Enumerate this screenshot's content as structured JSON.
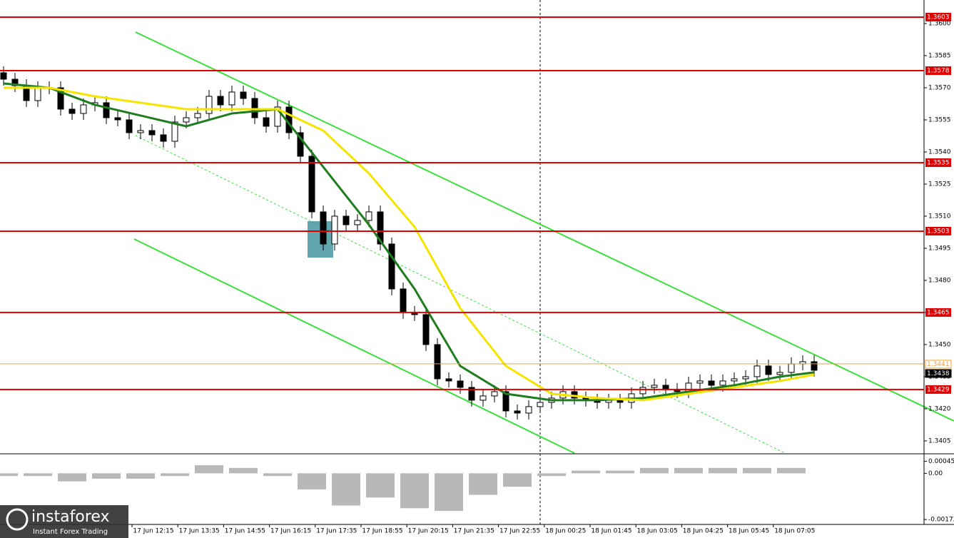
{
  "chart_data": {
    "type": "candlestick",
    "open": [
      1.3577,
      1.3574,
      1.3571,
      1.3564,
      1.357,
      1.357,
      1.356,
      1.3558,
      1.3562,
      1.3563,
      1.3556,
      1.3555,
      1.3549,
      1.355,
      1.3548,
      1.3545,
      1.3554,
      1.3556,
      1.3558,
      1.3566,
      1.3562,
      1.3568,
      1.3565,
      1.3556,
      1.3552,
      1.3561,
      1.3549,
      1.3538,
      1.3512,
      1.3497,
      1.351,
      1.3506,
      1.3508,
      1.3512,
      1.3497,
      1.3476,
      1.3465,
      1.3464,
      1.345,
      1.3434,
      1.3433,
      1.343,
      1.3424,
      1.3426,
      1.3428,
      1.3419,
      1.3418,
      1.3421,
      1.3423,
      1.3425,
      1.3428,
      1.3425,
      1.3424,
      1.3423,
      1.3424,
      1.3423,
      1.3427,
      1.343,
      1.3431,
      1.3429,
      1.3428,
      1.3432,
      1.3433,
      1.3431,
      1.3433,
      1.3434,
      1.3435,
      1.344,
      1.3436,
      1.3437,
      1.3441,
      1.3442
    ],
    "high": [
      1.358,
      1.3577,
      1.3574,
      1.3573,
      1.3573,
      1.3573,
      1.3563,
      1.3565,
      1.3566,
      1.3566,
      1.3559,
      1.3558,
      1.3553,
      1.3553,
      1.3551,
      1.3557,
      1.3559,
      1.3561,
      1.3569,
      1.3569,
      1.3571,
      1.3571,
      1.3568,
      1.3559,
      1.3564,
      1.3564,
      1.3552,
      1.3541,
      1.3515,
      1.3513,
      1.3513,
      1.3511,
      1.3515,
      1.3515,
      1.35,
      1.3479,
      1.3468,
      1.3467,
      1.3453,
      1.3437,
      1.3436,
      1.3433,
      1.3429,
      1.3431,
      1.3431,
      1.3422,
      1.3424,
      1.3426,
      1.3428,
      1.3431,
      1.3431,
      1.3428,
      1.3427,
      1.3427,
      1.3427,
      1.343,
      1.3433,
      1.3434,
      1.3434,
      1.3432,
      1.3435,
      1.3436,
      1.3436,
      1.3436,
      1.3437,
      1.3438,
      1.3443,
      1.3443,
      1.344,
      1.3444,
      1.3445,
      1.3445
    ],
    "low": [
      1.3571,
      1.3568,
      1.3561,
      1.3561,
      1.3567,
      1.3557,
      1.3555,
      1.3555,
      1.3559,
      1.3553,
      1.3552,
      1.3546,
      1.3546,
      1.3545,
      1.3542,
      1.3542,
      1.3551,
      1.3553,
      1.3555,
      1.3559,
      1.3559,
      1.3562,
      1.3553,
      1.3549,
      1.3549,
      1.3546,
      1.3535,
      1.3509,
      1.3494,
      1.3494,
      1.3503,
      1.3503,
      1.3505,
      1.3494,
      1.3473,
      1.3462,
      1.3461,
      1.3447,
      1.3431,
      1.343,
      1.3427,
      1.3421,
      1.3421,
      1.3423,
      1.3416,
      1.3415,
      1.3415,
      1.3418,
      1.342,
      1.3422,
      1.3422,
      1.3421,
      1.342,
      1.342,
      1.342,
      1.342,
      1.3424,
      1.3427,
      1.3426,
      1.3425,
      1.3425,
      1.3429,
      1.3428,
      1.3428,
      1.343,
      1.3431,
      1.3432,
      1.3433,
      1.3433,
      1.3434,
      1.3438,
      1.3435
    ],
    "close": [
      1.3574,
      1.3571,
      1.3564,
      1.357,
      1.357,
      1.356,
      1.3558,
      1.3562,
      1.3563,
      1.3556,
      1.3555,
      1.3549,
      1.355,
      1.3548,
      1.3545,
      1.3554,
      1.3556,
      1.3558,
      1.3566,
      1.3562,
      1.3568,
      1.3565,
      1.3556,
      1.3552,
      1.3561,
      1.3549,
      1.3538,
      1.3512,
      1.3497,
      1.351,
      1.3506,
      1.3508,
      1.3512,
      1.3497,
      1.3476,
      1.3465,
      1.3464,
      1.345,
      1.3434,
      1.3433,
      1.343,
      1.3424,
      1.3426,
      1.3428,
      1.3419,
      1.3418,
      1.3421,
      1.3423,
      1.3425,
      1.3428,
      1.3425,
      1.3424,
      1.3423,
      1.3424,
      1.3423,
      1.3427,
      1.343,
      1.3431,
      1.3429,
      1.3428,
      1.3432,
      1.3433,
      1.3431,
      1.3433,
      1.3434,
      1.3435,
      1.344,
      1.3436,
      1.3437,
      1.3441,
      1.3442,
      1.3438
    ],
    "ylim": [
      1.33993,
      1.3611
    ],
    "yticks": [
      1.3405,
      {
        "value": 1.342,
        "label": "1.3420"
      },
      1.3435,
      {
        "value": 1.345,
        "label": "1.3450"
      },
      1.3465,
      {
        "value": 1.348,
        "label": "1.3480"
      },
      1.3495,
      {
        "value": 1.351,
        "label": "1.3510"
      },
      1.3525,
      {
        "value": 1.354,
        "label": "1.3540"
      },
      1.3555,
      {
        "value": 1.357,
        "label": "1.3570"
      },
      1.3585,
      {
        "value": 1.36,
        "label": "1.3600"
      }
    ],
    "levels": [
      1.3603,
      1.3578,
      1.3535,
      1.3503,
      1.3465,
      1.3429
    ],
    "level_color": "#e00000",
    "price_lines": [
      {
        "value": 1.3441,
        "color": "#f0a030"
      },
      {
        "value": 1.3438,
        "color": "#000000"
      }
    ],
    "ma_lines": [
      {
        "color": "#1e7d1e",
        "x": [
          0,
          4,
          8,
          12,
          16,
          20,
          24,
          28,
          32,
          36,
          40,
          44,
          48,
          52,
          56,
          60,
          64,
          68,
          71
        ],
        "values": [
          1.3572,
          1.357,
          1.3562,
          1.3557,
          1.3552,
          1.3558,
          1.356,
          1.3533,
          1.3506,
          1.3476,
          1.344,
          1.3427,
          1.3424,
          1.3424,
          1.3425,
          1.3428,
          1.3431,
          1.3435,
          1.3437
        ]
      },
      {
        "color": "#f5e400",
        "x": [
          0,
          4,
          8,
          12,
          16,
          20,
          24,
          28,
          32,
          36,
          40,
          44,
          48,
          52,
          56,
          60,
          64,
          68,
          71
        ],
        "values": [
          1.357,
          1.357,
          1.3566,
          1.3563,
          1.356,
          1.356,
          1.356,
          1.355,
          1.353,
          1.3505,
          1.3467,
          1.344,
          1.3427,
          1.3425,
          1.3424,
          1.3427,
          1.343,
          1.3433,
          1.3436
        ]
      }
    ],
    "xlabels": [
      "17 Jun 12:15",
      "17 Jun 13:35",
      "17 Jun 14:55",
      "17 Jun 16:15",
      "17 Jun 17:35",
      "17 Jun 18:55",
      "17 Jun 20:15",
      "17 Jun 21:35",
      "17 Jun 22:55",
      "18 Jun 00:25",
      "18 Jun 01:45",
      "18 Jun 03:05",
      "18 Jun 04:25",
      "18 Jun 05:45",
      "18 Jun 07:05"
    ],
    "macd": {
      "color": "#b8b8b8",
      "ylim": [
        -0.00185,
        0.0007
      ],
      "yticks": [
        0.00045,
        {
          "value": 0,
          "label": "0.00"
        },
        -0.00172
      ],
      "x": [
        0,
        3,
        6,
        9,
        12,
        15,
        18,
        21,
        24,
        27,
        30,
        33,
        36,
        39,
        42,
        45,
        48,
        51,
        54,
        57,
        60,
        63,
        66,
        69
      ],
      "values": [
        -0.0001,
        -0.0001,
        -0.0003,
        -0.0002,
        -0.0002,
        -0.0001,
        0.0003,
        0.0002,
        -0.0001,
        -0.0006,
        -0.0012,
        -0.0009,
        -0.0013,
        -0.0014,
        -0.0008,
        -0.0005,
        -0.0001,
        0.0001,
        0.0001,
        0.0002,
        0.0002,
        0.0002,
        0.0002,
        0.0002
      ]
    }
  },
  "logo": {
    "name": "instaforex",
    "tagline": "Instant Forex Trading"
  }
}
